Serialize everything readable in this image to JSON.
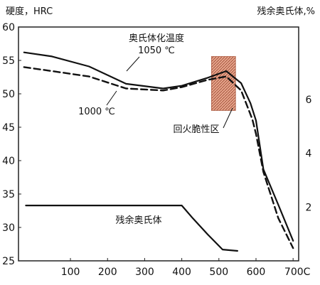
{
  "chart_data": {
    "type": "line",
    "title": "",
    "xlabel": "",
    "ylabel_left": "硬度，HRC",
    "ylabel_right": "残余奥氏体,%",
    "xlim": [
      -40,
      715
    ],
    "ylim_left": [
      25,
      60
    ],
    "ylim_right": [
      0,
      8.7
    ],
    "grid": false,
    "x_ticks": [
      100,
      200,
      300,
      400,
      500,
      600,
      700
    ],
    "x_tick_labels": [
      "100",
      "200",
      "300",
      "400",
      "500",
      "600",
      "700C"
    ],
    "y_left_ticks": [
      25,
      30,
      35,
      40,
      45,
      50,
      55,
      60
    ],
    "y_left_tick_labels": [
      "25",
      "30",
      "35",
      "40",
      "45",
      "50",
      "55",
      "60"
    ],
    "y_right_ticks": [
      2,
      4,
      6
    ],
    "y_right_tick_labels": [
      "2",
      "4",
      "6"
    ],
    "series": [
      {
        "name": "奥氏体化温度 1050 ℃",
        "axis": "left",
        "style": "solid",
        "x": [
          -25,
          50,
          150,
          250,
          350,
          400,
          470,
          520,
          560,
          585,
          600,
          620,
          660,
          700
        ],
        "y": [
          56.2,
          55.6,
          54.1,
          51.5,
          50.8,
          51.2,
          52.4,
          53.4,
          51.6,
          48.6,
          46,
          38.7,
          33.4,
          28
        ]
      },
      {
        "name": "1000 ℃",
        "axis": "left",
        "style": "dashed",
        "x": [
          -25,
          50,
          150,
          250,
          350,
          400,
          470,
          520,
          560,
          590,
          600,
          620,
          660,
          700
        ],
        "y": [
          54,
          53.4,
          52.6,
          50.8,
          50.5,
          51,
          52.1,
          52.6,
          50.5,
          46.2,
          44,
          38.3,
          31.4,
          26.9
        ]
      },
      {
        "name": "残余奥氏体",
        "axis": "right",
        "style": "solid",
        "x": [
          -20,
          400,
          430,
          470,
          510,
          550
        ],
        "y": [
          2.06,
          2.06,
          1.58,
          0.98,
          0.42,
          0.37
        ]
      }
    ],
    "annotations": [
      "奥氏体化温度",
      "1050 ℃",
      "1000 ℃",
      "回火脆性区",
      "残余奥氏体"
    ],
    "shaded_region": {
      "label": "回火脆性区",
      "x": [
        480,
        545
      ],
      "y": [
        47.5,
        55.6
      ],
      "fill": "#e7a58c",
      "hatch": "#9c4b35"
    },
    "colors": {
      "line": "#111111",
      "axis": "#222222"
    }
  }
}
